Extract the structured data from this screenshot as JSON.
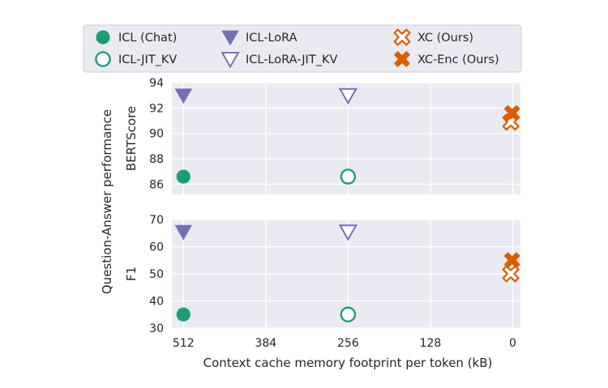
{
  "chart_data": {
    "type": "scatter",
    "shared_ylabel": "Question-Answer performance",
    "xlabel": "Context cache memory footprint per token (kB)",
    "x_ticks": [
      "512",
      "384",
      "256",
      "128",
      "0"
    ],
    "x_ticks_values": [
      512,
      384,
      256,
      128,
      0
    ],
    "xlim": [
      530,
      -12
    ],
    "x_reversed": true,
    "legend": [
      {
        "name": "ICL (Chat)",
        "marker": "circle-filled",
        "color": "#1b9e77"
      },
      {
        "name": "ICL-LoRA",
        "marker": "triangle-down-filled",
        "color": "#7570b3"
      },
      {
        "name": "XC (Ours)",
        "marker": "x-outline",
        "color": "#d95f02"
      },
      {
        "name": "ICL-JIT_KV",
        "marker": "circle-open",
        "color": "#1b9e77"
      },
      {
        "name": "ICL-LoRA-JIT_KV",
        "marker": "triangle-down-open",
        "color": "#7570b3"
      },
      {
        "name": "XC-Enc (Ours)",
        "marker": "x-filled",
        "color": "#d95f02"
      }
    ],
    "panels": [
      {
        "ylabel": "BERTScore",
        "ylim": [
          85.2,
          94
        ],
        "y_ticks": [
          "86",
          "88",
          "90",
          "92",
          "94"
        ],
        "y_ticks_values": [
          86,
          88,
          90,
          92,
          94
        ],
        "series": [
          {
            "name": "ICL (Chat)",
            "points": [
              {
                "x": 512,
                "y": 86.6
              }
            ]
          },
          {
            "name": "ICL-JIT_KV",
            "points": [
              {
                "x": 256,
                "y": 86.6
              }
            ]
          },
          {
            "name": "ICL-LoRA",
            "points": [
              {
                "x": 512,
                "y": 93.0
              }
            ]
          },
          {
            "name": "ICL-LoRA-JIT_KV",
            "points": [
              {
                "x": 256,
                "y": 93.0
              }
            ]
          },
          {
            "name": "XC (Ours)",
            "points": [
              {
                "x": 3,
                "y": 90.9
              }
            ]
          },
          {
            "name": "XC-Enc (Ours)",
            "points": [
              {
                "x": 1,
                "y": 91.6
              }
            ]
          }
        ]
      },
      {
        "ylabel": "F1",
        "ylim": [
          30,
          70
        ],
        "y_ticks": [
          "30",
          "40",
          "50",
          "60",
          "70"
        ],
        "y_ticks_values": [
          30,
          40,
          50,
          60,
          70
        ],
        "series": [
          {
            "name": "ICL (Chat)",
            "points": [
              {
                "x": 512,
                "y": 35
              }
            ]
          },
          {
            "name": "ICL-JIT_KV",
            "points": [
              {
                "x": 256,
                "y": 35
              }
            ]
          },
          {
            "name": "ICL-LoRA",
            "points": [
              {
                "x": 512,
                "y": 65.5
              }
            ]
          },
          {
            "name": "ICL-LoRA-JIT_KV",
            "points": [
              {
                "x": 256,
                "y": 65.5
              }
            ]
          },
          {
            "name": "XC (Ours)",
            "points": [
              {
                "x": 3,
                "y": 50
              }
            ]
          },
          {
            "name": "XC-Enc (Ours)",
            "points": [
              {
                "x": 1,
                "y": 55
              }
            ]
          }
        ]
      }
    ],
    "grid": true,
    "legend_placement": "top",
    "panel_background": "#eaeaf2"
  }
}
